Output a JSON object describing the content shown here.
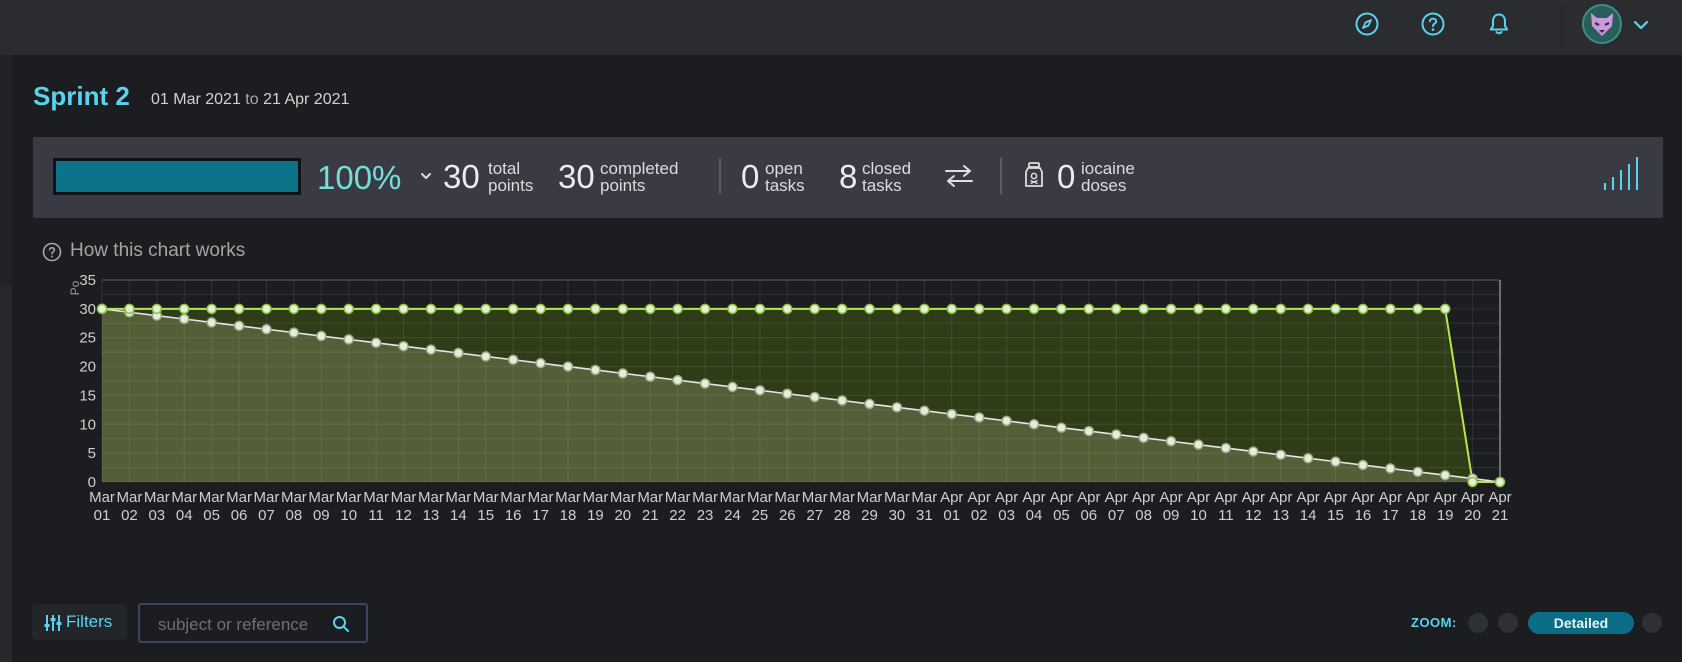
{
  "topbar": {
    "icons": [
      "compass-icon",
      "help-icon",
      "bell-icon"
    ],
    "user_menu_icon": "chevron-down-icon"
  },
  "sprint": {
    "title": "Sprint 2",
    "start": "01 Mar 2021",
    "to": "to",
    "end": "21 Apr 2021"
  },
  "summary": {
    "progress_fraction": 1.0,
    "progress_label": "100%",
    "total_points": {
      "value": "30",
      "label1": "total",
      "label2": "points"
    },
    "completed_points": {
      "value": "30",
      "label1": "completed",
      "label2": "points"
    },
    "open_tasks": {
      "value": "0",
      "label1": "open",
      "label2": "tasks"
    },
    "closed_tasks": {
      "value": "8",
      "label1": "closed",
      "label2": "tasks"
    },
    "iocaine_doses": {
      "value": "0",
      "label1": "iocaine",
      "label2": "doses"
    }
  },
  "how_chart_works": "How this chart works",
  "chart_data": {
    "type": "area",
    "ylabel": "Po",
    "ylim": [
      0,
      35
    ],
    "yticks": [
      0,
      5,
      10,
      15,
      20,
      25,
      30,
      35
    ],
    "grid": true,
    "x_months": [
      "Mar",
      "Mar",
      "Mar",
      "Mar",
      "Mar",
      "Mar",
      "Mar",
      "Mar",
      "Mar",
      "Mar",
      "Mar",
      "Mar",
      "Mar",
      "Mar",
      "Mar",
      "Mar",
      "Mar",
      "Mar",
      "Mar",
      "Mar",
      "Mar",
      "Mar",
      "Mar",
      "Mar",
      "Mar",
      "Mar",
      "Mar",
      "Mar",
      "Mar",
      "Mar",
      "Mar",
      "Apr",
      "Apr",
      "Apr",
      "Apr",
      "Apr",
      "Apr",
      "Apr",
      "Apr",
      "Apr",
      "Apr",
      "Apr",
      "Apr",
      "Apr",
      "Apr",
      "Apr",
      "Apr",
      "Apr",
      "Apr",
      "Apr",
      "Apr",
      "Apr"
    ],
    "x_days": [
      "01",
      "02",
      "03",
      "04",
      "05",
      "06",
      "07",
      "08",
      "09",
      "10",
      "11",
      "12",
      "13",
      "14",
      "15",
      "16",
      "17",
      "18",
      "19",
      "20",
      "21",
      "22",
      "23",
      "24",
      "25",
      "26",
      "27",
      "28",
      "29",
      "30",
      "31",
      "01",
      "02",
      "03",
      "04",
      "05",
      "06",
      "07",
      "08",
      "09",
      "10",
      "11",
      "12",
      "13",
      "14",
      "15",
      "16",
      "17",
      "18",
      "19",
      "20",
      "21"
    ],
    "series": [
      {
        "values": [
          30,
          30,
          30,
          30,
          30,
          30,
          30,
          30,
          30,
          30,
          30,
          30,
          30,
          30,
          30,
          30,
          30,
          30,
          30,
          30,
          30,
          30,
          30,
          30,
          30,
          30,
          30,
          30,
          30,
          30,
          30,
          30,
          30,
          30,
          30,
          30,
          30,
          30,
          30,
          30,
          30,
          30,
          30,
          30,
          30,
          30,
          30,
          30,
          30,
          30,
          0,
          0
        ],
        "color": "#b8e64a",
        "fill": "#2f3c18"
      },
      {
        "values": [
          30,
          29.41,
          28.82,
          28.24,
          27.65,
          27.06,
          26.47,
          25.88,
          25.29,
          24.71,
          24.12,
          23.53,
          22.94,
          22.35,
          21.76,
          21.18,
          20.59,
          20,
          19.41,
          18.82,
          18.24,
          17.65,
          17.06,
          16.47,
          15.88,
          15.29,
          14.71,
          14.12,
          13.53,
          12.94,
          12.35,
          11.76,
          11.18,
          10.59,
          10,
          9.41,
          8.82,
          8.24,
          7.65,
          7.06,
          6.47,
          5.88,
          5.29,
          4.71,
          4.12,
          3.53,
          2.94,
          2.35,
          1.76,
          1.18,
          0.59,
          0
        ],
        "color": "#e6e6e6",
        "fill": "#525f37"
      }
    ]
  },
  "filters": {
    "label": "Filters"
  },
  "search": {
    "placeholder": "subject or reference"
  },
  "zoom": {
    "label": "ZOOM:",
    "active": "Detailed"
  }
}
